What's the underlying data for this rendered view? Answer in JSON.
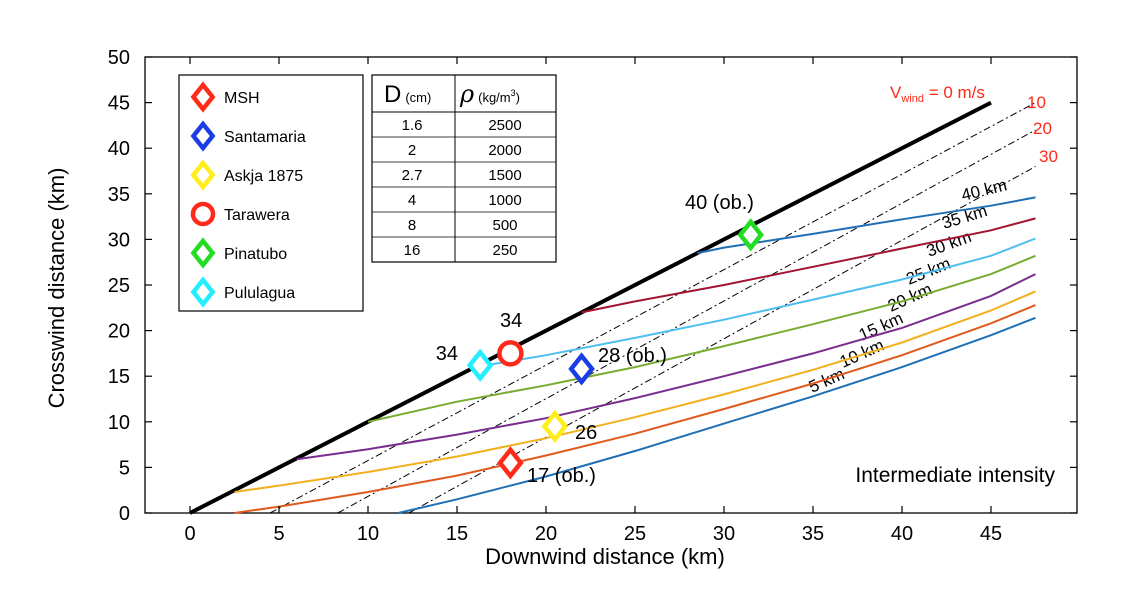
{
  "chart_data": {
    "type": "line",
    "xlabel": "Downwind distance (km)",
    "ylabel": "Crosswind distance (km)",
    "xlim": [
      -2.5,
      50
    ],
    "ylim": [
      0,
      50
    ],
    "xticks": [
      "0",
      "5",
      "10",
      "15",
      "20",
      "25",
      "30",
      "35",
      "40",
      "45"
    ],
    "yticks": [
      "0",
      "5",
      "10",
      "15",
      "20",
      "25",
      "30",
      "35",
      "40",
      "45",
      "50"
    ],
    "grid": false,
    "annotation_text": "Intermediate intensity",
    "wind_lines": [
      {
        "label_main": "V",
        "label_sub": "wind",
        "label_rest": " = 0 m/s",
        "color": "#000000",
        "style": "solid",
        "x": [
          0,
          45
        ],
        "y": [
          0,
          45
        ]
      },
      {
        "label": "10",
        "color": "#000000",
        "style": "dashdot",
        "x": [
          4.5,
          47.5
        ],
        "y": [
          0,
          45
        ]
      },
      {
        "label": "20",
        "color": "#000000",
        "style": "dashdot",
        "x": [
          8.3,
          47.5
        ],
        "y": [
          0,
          42
        ]
      },
      {
        "label": "30",
        "color": "#000000",
        "style": "dashdot",
        "x": [
          12.3,
          47.5
        ],
        "y": [
          0,
          38
        ]
      }
    ],
    "wind_label_color": "#ff2a1a",
    "series": [
      {
        "name": "5 km",
        "color": "#1f6fb5",
        "x": [
          11.7,
          15,
          20,
          25,
          30,
          35,
          40,
          45,
          47.5
        ],
        "y": [
          0,
          1.5,
          4.0,
          6.8,
          9.8,
          12.8,
          16.0,
          19.5,
          21.4
        ]
      },
      {
        "name": "10 km",
        "color": "#e05a1e",
        "x": [
          2.5,
          5,
          10,
          15,
          20,
          25,
          30,
          35,
          40,
          45,
          47.5
        ],
        "y": [
          0,
          0.7,
          2.3,
          4.1,
          6.3,
          8.7,
          11.4,
          14.2,
          17.3,
          20.8,
          22.8
        ]
      },
      {
        "name": "15 km",
        "color": "#f2b01e",
        "x": [
          2.5,
          5,
          10,
          15,
          20,
          25,
          30,
          35,
          40,
          45,
          47.5
        ],
        "y": [
          2.3,
          3.0,
          4.5,
          6.2,
          8.2,
          10.5,
          13.0,
          15.7,
          18.7,
          22.2,
          24.3
        ]
      },
      {
        "name": "20 km",
        "color": "#7b2d8e",
        "x": [
          6,
          10,
          15,
          20,
          25,
          30,
          35,
          40,
          45,
          47.5
        ],
        "y": [
          5.9,
          7.0,
          8.6,
          10.4,
          12.6,
          15.0,
          17.5,
          20.3,
          23.8,
          26.2
        ]
      },
      {
        "name": "25 km",
        "color": "#77ac30",
        "x": [
          10,
          15,
          20,
          25,
          30,
          35,
          40,
          45,
          47.5
        ],
        "y": [
          10.0,
          12.2,
          14.0,
          16.0,
          18.3,
          20.7,
          23.2,
          26.2,
          28.2
        ]
      },
      {
        "name": "30 km",
        "color": "#4dbeee",
        "x": [
          16,
          20,
          25,
          30,
          35,
          40,
          45,
          47.5
        ],
        "y": [
          16.0,
          17.3,
          19.2,
          21.2,
          23.4,
          25.6,
          28.2,
          30.1
        ]
      },
      {
        "name": "35 km",
        "color": "#a2142f",
        "x": [
          22,
          25,
          30,
          35,
          40,
          45,
          47.5
        ],
        "y": [
          22.0,
          23.2,
          25.0,
          27.0,
          29.0,
          31.0,
          32.3
        ]
      },
      {
        "name": "40 km",
        "color": "#1f6fb5",
        "x": [
          28.5,
          30,
          35,
          40,
          45,
          47.5
        ],
        "y": [
          28.5,
          29.1,
          30.6,
          32.2,
          33.7,
          34.6
        ]
      }
    ],
    "points": [
      {
        "name": "MSH",
        "color": "#ff2a1a",
        "shape": "diamond",
        "x": 18.0,
        "y": 5.5,
        "label": "17 (ob.)"
      },
      {
        "name": "Santamaria",
        "color": "#1a3ee6",
        "shape": "diamond",
        "x": 22.0,
        "y": 15.8,
        "label": "28 (ob.)"
      },
      {
        "name": "Askja 1875",
        "color": "#ffee1a",
        "shape": "diamond",
        "x": 20.5,
        "y": 9.5,
        "label": "26"
      },
      {
        "name": "Tarawera",
        "color": "#ff2a1a",
        "shape": "circle",
        "x": 18.0,
        "y": 17.5,
        "label": "34"
      },
      {
        "name": "Pinatubo",
        "color": "#22dd22",
        "shape": "diamond",
        "x": 31.5,
        "y": 30.5,
        "label": "40 (ob.)"
      },
      {
        "name": "Pululagua",
        "color": "#22eeff",
        "shape": "diamond",
        "x": 16.3,
        "y": 16.2,
        "label": "34"
      }
    ],
    "legend": {
      "position": "top-left",
      "items": [
        {
          "label": "MSH",
          "color": "#ff2a1a",
          "shape": "diamond"
        },
        {
          "label": "Santamaria",
          "color": "#1a3ee6",
          "shape": "diamond"
        },
        {
          "label": "Askja 1875",
          "color": "#ffee1a",
          "shape": "diamond"
        },
        {
          "label": "Tarawera",
          "color": "#ff2a1a",
          "shape": "circle"
        },
        {
          "label": "Pinatubo",
          "color": "#22dd22",
          "shape": "diamond"
        },
        {
          "label": "Pululagua",
          "color": "#22eeff",
          "shape": "diamond"
        }
      ]
    },
    "table": {
      "headers": [
        {
          "main": "D",
          "unit": "(cm)"
        },
        {
          "main": "ρ",
          "unit": "(kg/m",
          "sup": "3",
          "close": ")"
        }
      ],
      "rows": [
        [
          "1.6",
          "2500"
        ],
        [
          "2",
          "2000"
        ],
        [
          "2.7",
          "1500"
        ],
        [
          "4",
          "1000"
        ],
        [
          "8",
          "500"
        ],
        [
          "16",
          "250"
        ]
      ]
    }
  }
}
